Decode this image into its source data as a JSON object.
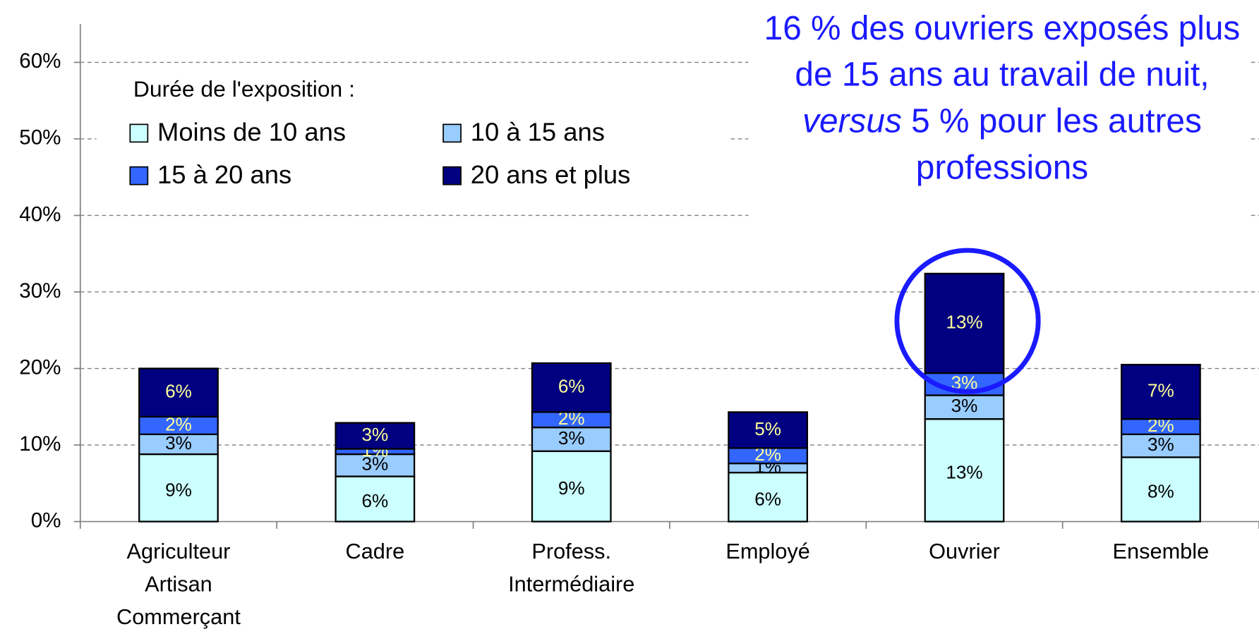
{
  "chart_data": {
    "type": "stacked_bar",
    "categories": [
      "Agriculteur\nArtisan\nCommerçant",
      "Cadre",
      "Profess.\nIntermédiaire",
      "Employé",
      "Ouvrier",
      "Ensemble"
    ],
    "legend_title": "Durée de l'exposition :",
    "series": [
      {
        "name": "Moins de 10 ans",
        "color": "#ccffff",
        "label_color": "#000000",
        "values": [
          8.8,
          5.9,
          9.2,
          6.4,
          13.4,
          8.4
        ],
        "value_labels": [
          "9%",
          "6%",
          "9%",
          "6%",
          "13%",
          "8%"
        ]
      },
      {
        "name": "10 à 15 ans",
        "color": "#99ccff",
        "label_color": "#000000",
        "values": [
          2.6,
          2.9,
          3.1,
          1.2,
          3.1,
          3.0
        ],
        "value_labels": [
          "3%",
          "3%",
          "3%",
          "1%",
          "3%",
          "3%"
        ]
      },
      {
        "name": "15 à 20 ans",
        "color": "#3366ff",
        "label_color": "#ffff99",
        "values": [
          2.3,
          0.7,
          2.0,
          2.0,
          2.9,
          2.0
        ],
        "value_labels": [
          "2%",
          "1%",
          "2%",
          "2%",
          "3%",
          "2%"
        ]
      },
      {
        "name": "20 ans et plus",
        "color": "#000080",
        "label_color": "#ffff99",
        "values": [
          6.3,
          3.4,
          6.4,
          4.7,
          13.0,
          7.1
        ],
        "value_labels": [
          "6%",
          "3%",
          "6%",
          "5%",
          "13%",
          "7%"
        ]
      }
    ],
    "ylim": [
      0,
      65
    ],
    "yticks": [
      {
        "value": 0,
        "label": "0%"
      },
      {
        "value": 10,
        "label": "10%"
      },
      {
        "value": 20,
        "label": "20%"
      },
      {
        "value": 30,
        "label": "30%"
      },
      {
        "value": 40,
        "label": "40%"
      },
      {
        "value": 50,
        "label": "50%"
      },
      {
        "value": 60,
        "label": "60%"
      }
    ],
    "grid": true,
    "annotation": [
      "16 % des ouvriers exposés plus de 15 ans au travail de nuit, ",
      "versus",
      " 5 % pour les autres professions"
    ]
  }
}
